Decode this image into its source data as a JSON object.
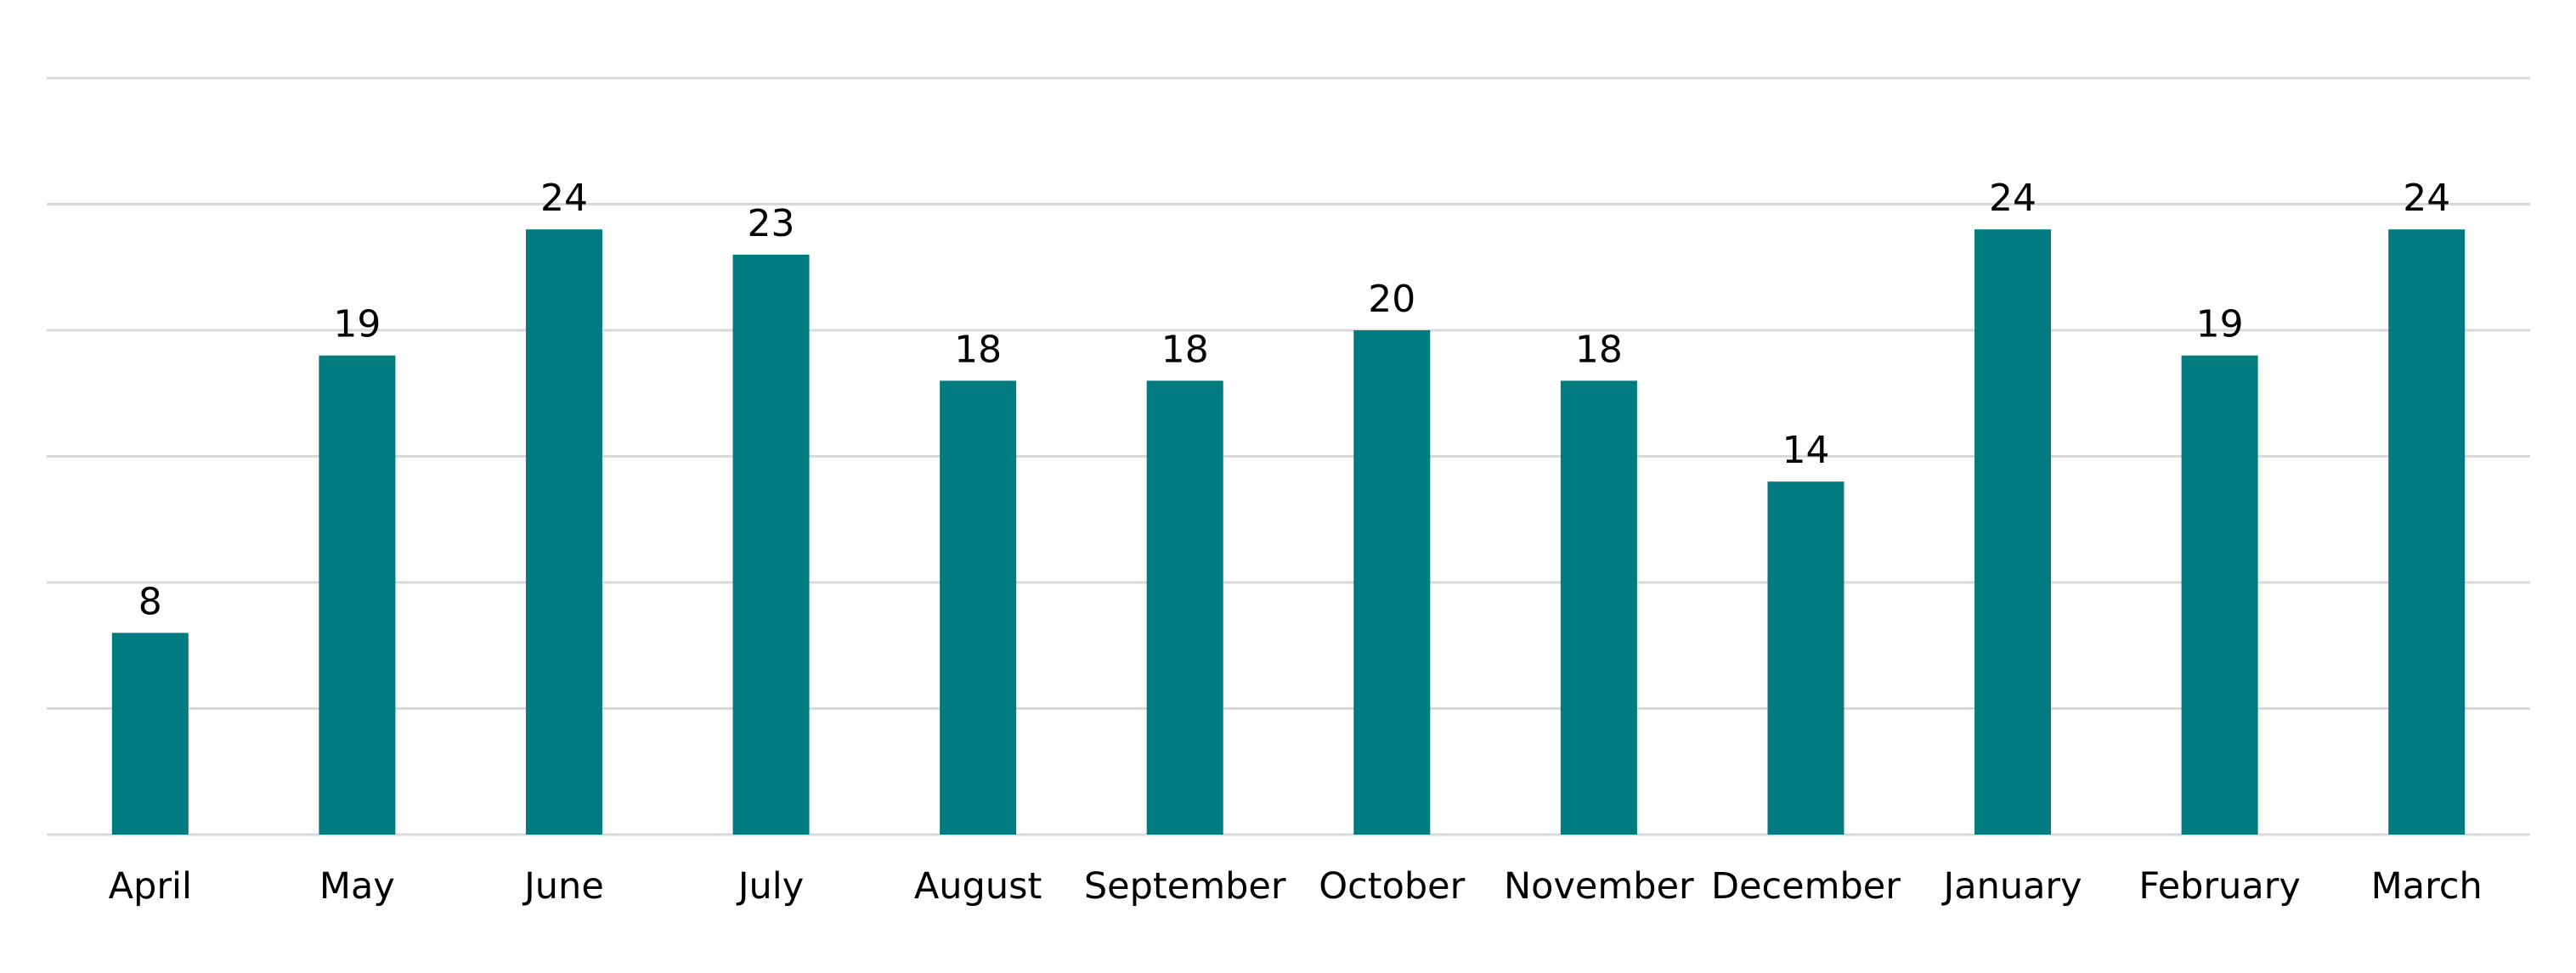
{
  "chart_data": {
    "type": "bar",
    "title": "",
    "xlabel": "",
    "ylabel": "",
    "categories": [
      "April",
      "May",
      "June",
      "July",
      "August",
      "September",
      "October",
      "November",
      "December",
      "January",
      "February",
      "March"
    ],
    "values": [
      8,
      19,
      24,
      23,
      18,
      18,
      20,
      18,
      14,
      24,
      19,
      24
    ],
    "ylim": [
      0,
      30
    ],
    "gridline_step": 5,
    "grid": true,
    "y_tick_labels_shown": false,
    "data_labels_shown": true,
    "legend": "none",
    "bar_color": "#007c80",
    "grid_color": "#d9d9d9",
    "text_color": "#000000"
  }
}
